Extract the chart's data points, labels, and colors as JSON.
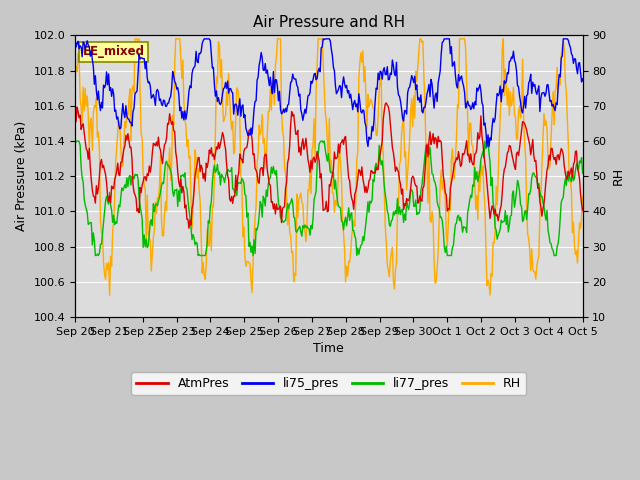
{
  "title": "Air Pressure and RH",
  "xlabel": "Time",
  "ylabel_left": "Air Pressure (kPa)",
  "ylabel_right": "RH",
  "ylim_left": [
    100.4,
    102.0
  ],
  "ylim_right": [
    10,
    90
  ],
  "yticks_left": [
    100.4,
    100.6,
    100.8,
    101.0,
    101.2,
    101.4,
    101.6,
    101.8,
    102.0
  ],
  "yticks_right": [
    10,
    20,
    30,
    40,
    50,
    60,
    70,
    80,
    90
  ],
  "xtick_labels": [
    "Sep 20",
    "Sep 21",
    "Sep 22",
    "Sep 23",
    "Sep 24",
    "Sep 25",
    "Sep 26",
    "Sep 27",
    "Sep 28",
    "Sep 29",
    "Sep 30",
    "Oct 1",
    "Oct 2",
    "Oct 3",
    "Oct 4",
    "Oct 5"
  ],
  "annotation_text": "EE_mixed",
  "annotation_color": "#880000",
  "line_colors": {
    "AtmPres": "#dd0000",
    "li75_pres": "#0000ee",
    "li77_pres": "#00bb00",
    "RH": "#ffaa00"
  },
  "legend_labels": [
    "AtmPres",
    "li75_pres",
    "li77_pres",
    "RH"
  ],
  "fig_bg": "#c8c8c8",
  "plot_bg": "#dcdcdc",
  "grid_color": "#ffffff",
  "n_points": 500
}
